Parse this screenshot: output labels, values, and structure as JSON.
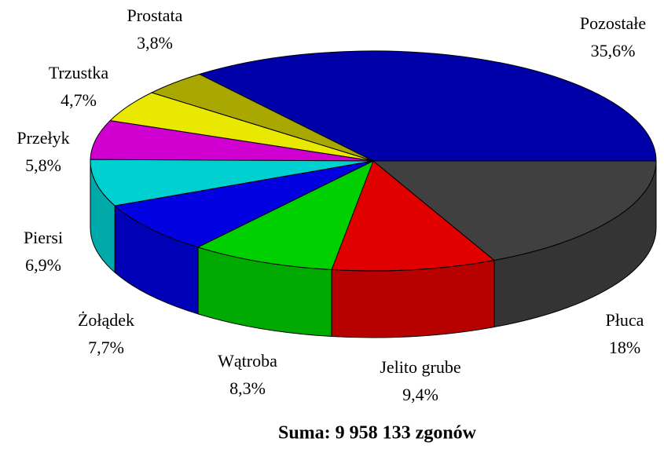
{
  "chart_data": {
    "type": "pie",
    "title": "Suma: 9 958 133 zgonów",
    "categories": [
      "Pozostałe",
      "Prostata",
      "Trzustka",
      "Przełyk",
      "Piersi",
      "Żołądek",
      "Wątroba",
      "Jelito grube",
      "Płuca"
    ],
    "values": [
      35.6,
      3.8,
      4.7,
      5.8,
      6.9,
      7.7,
      8.3,
      9.4,
      18
    ],
    "value_labels": [
      "35,6%",
      "3,8%",
      "4,7%",
      "5,8%",
      "6,9%",
      "7,7%",
      "8,3%",
      "9,4%",
      "18%"
    ],
    "colors": [
      "#0000a8",
      "#a8a800",
      "#e8e800",
      "#d000d0",
      "#00d0d0",
      "#0000e0",
      "#00d000",
      "#e00000",
      "#404040"
    ]
  }
}
